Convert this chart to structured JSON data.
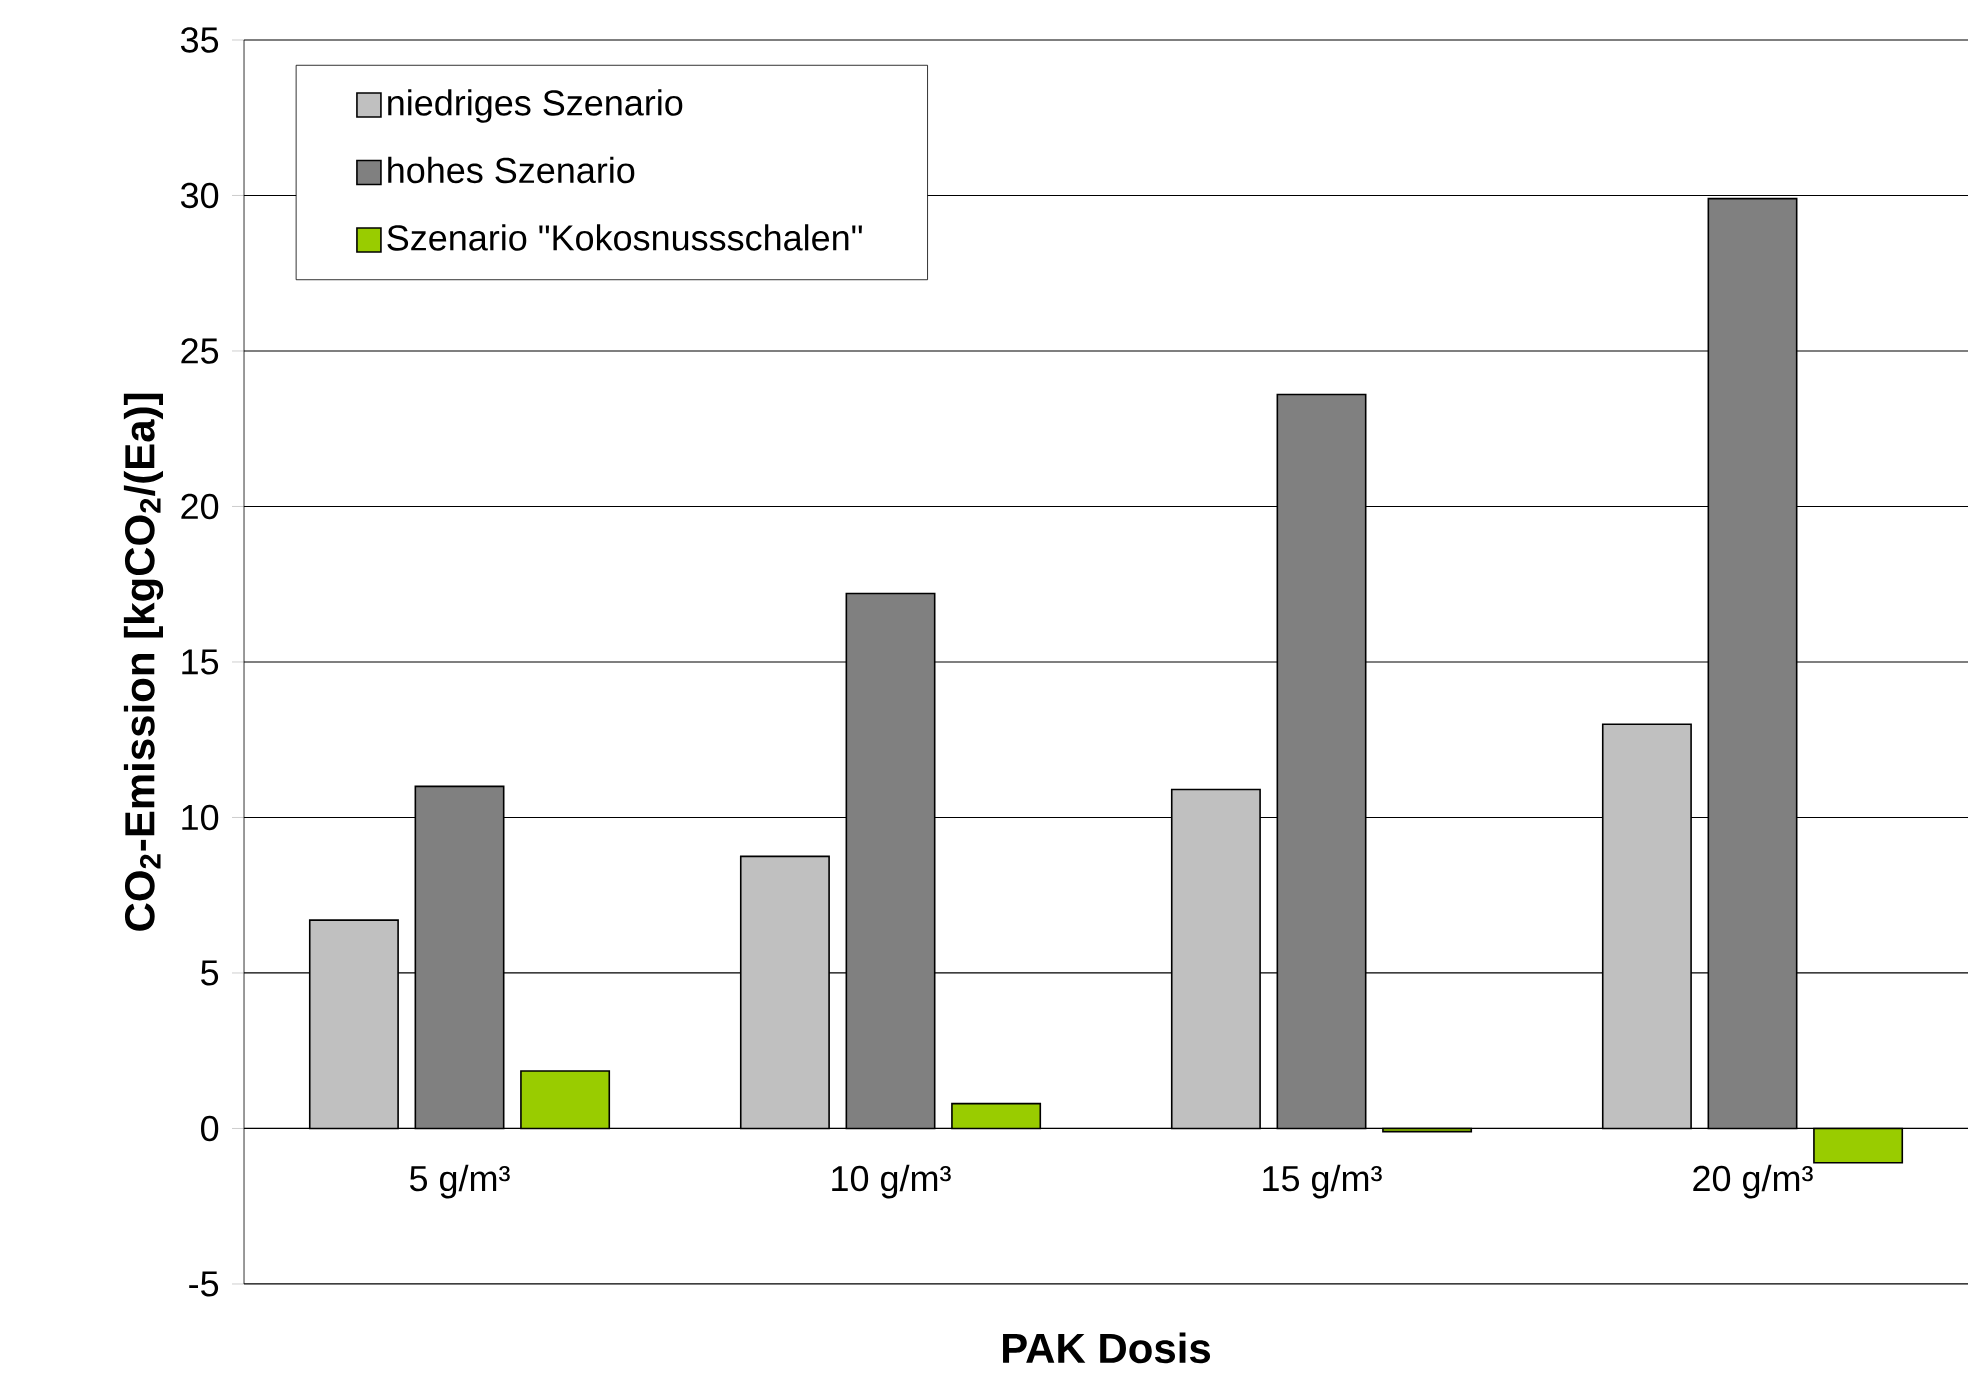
{
  "chart_data": {
    "type": "bar",
    "xlabel": "PAK Dosis",
    "ylabel": "CO$_{2}$-Emission [kgCO$_{2}$/(Ea)]",
    "categories": [
      "5 g/m³",
      "10 g/m³",
      "15 g/m³",
      "20 g/m³"
    ],
    "series": [
      {
        "name": "niedriges Szenario",
        "color": "#c0c0c0",
        "values": [
          6.7,
          8.75,
          10.9,
          13.0
        ]
      },
      {
        "name": "hohes Szenario",
        "color": "#808080",
        "values": [
          11.0,
          17.2,
          23.6,
          29.9
        ]
      },
      {
        "name": "Szenario \"Kokosnussschalen\"",
        "color": "#99cc00",
        "values": [
          1.85,
          0.8,
          -0.1,
          -1.1
        ]
      }
    ],
    "ylim": [
      -5,
      35
    ],
    "yticks": [
      -5,
      0,
      5,
      10,
      15,
      20,
      25,
      30,
      35
    ],
    "grid": "y",
    "legend": "top left"
  }
}
